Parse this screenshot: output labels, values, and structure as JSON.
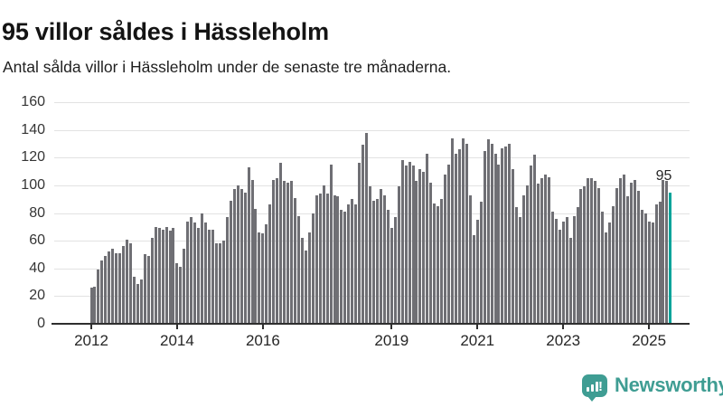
{
  "header": {
    "title": "95 villor såldes i Hässleholm",
    "subtitle": "Antal sålda villor i Hässleholm under de senaste tre månaderna."
  },
  "annotation": {
    "last_value_label": "95"
  },
  "branding": {
    "name": "Newsworthy",
    "icon": "newsworthy-bubble-chart-icon",
    "color": "#3f9d93"
  },
  "chart_data": {
    "type": "bar",
    "title": "95 villor såldes i Hässleholm",
    "subtitle": "Antal sålda villor i Hässleholm under de senaste tre månaderna.",
    "unit": "sålda villor (rullande 3 månader)",
    "start_month": "2012-01",
    "end_month": "2025-07",
    "frequency": "monthly",
    "grid": true,
    "ylim": [
      0,
      160
    ],
    "y_ticks": [
      0,
      20,
      40,
      60,
      80,
      100,
      120,
      140,
      160
    ],
    "x_tick_labels": [
      "2012",
      "2014",
      "2016",
      "2019",
      "2021",
      "2023",
      "2025"
    ],
    "x_tick_month_indices": [
      0,
      24,
      48,
      84,
      108,
      132,
      156
    ],
    "bar_color": "#6f6f74",
    "highlight": {
      "index": 162,
      "value": 95,
      "color": "#00a49a"
    },
    "series": [
      {
        "name": "Antal sålda villor",
        "values": [
          26,
          27,
          39,
          46,
          49,
          52,
          54,
          51,
          51,
          56,
          61,
          58,
          34,
          29,
          32,
          50,
          49,
          62,
          70,
          69,
          68,
          70,
          67,
          69,
          44,
          41,
          54,
          74,
          77,
          73,
          69,
          80,
          73,
          68,
          68,
          58,
          58,
          60,
          77,
          89,
          97,
          100,
          97,
          95,
          113,
          104,
          83,
          66,
          65,
          72,
          86,
          104,
          105,
          116,
          103,
          102,
          103,
          91,
          78,
          62,
          53,
          66,
          80,
          93,
          94,
          100,
          94,
          115,
          93,
          92,
          82,
          81,
          86,
          90,
          86,
          116,
          129,
          138,
          99,
          89,
          90,
          97,
          93,
          82,
          69,
          77,
          99,
          118,
          114,
          117,
          114,
          103,
          112,
          110,
          123,
          102,
          87,
          85,
          90,
          108,
          115,
          134,
          123,
          126,
          134,
          130,
          93,
          64,
          75,
          88,
          125,
          133,
          130,
          123,
          115,
          127,
          128,
          130,
          112,
          84,
          77,
          93,
          100,
          114,
          122,
          101,
          105,
          108,
          106,
          81,
          76,
          68,
          74,
          77,
          62,
          78,
          84,
          97,
          99,
          105,
          105,
          103,
          98,
          81,
          66,
          73,
          85,
          98,
          105,
          108,
          92,
          102,
          104,
          96,
          82,
          80,
          74,
          73,
          86,
          88,
          104,
          103,
          95
        ]
      }
    ]
  }
}
